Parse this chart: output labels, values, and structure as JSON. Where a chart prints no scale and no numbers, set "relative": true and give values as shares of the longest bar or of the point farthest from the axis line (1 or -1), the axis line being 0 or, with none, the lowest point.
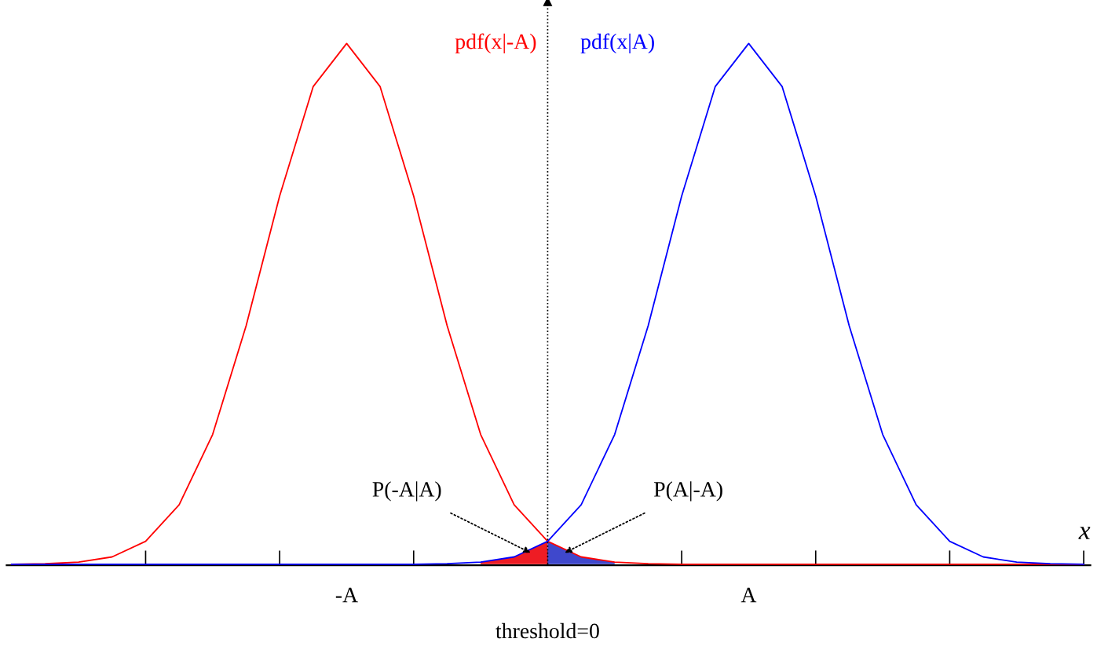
{
  "chart_data": {
    "type": "line",
    "relative": true,
    "xlabel": "x",
    "categories": [
      null,
      null,
      null,
      null,
      null,
      null,
      null,
      null,
      null,
      null,
      "-A",
      null,
      null,
      null,
      null,
      null,
      null,
      null,
      null,
      null,
      null,
      null,
      "A",
      null,
      null,
      null,
      null,
      null,
      null,
      null,
      null,
      null,
      null
    ],
    "series": [
      {
        "name": "pdf(x|-A)",
        "color": "#ff0000",
        "values": [
          0,
          0.001,
          0.004,
          0.014,
          0.044,
          0.114,
          0.249,
          0.458,
          0.707,
          0.917,
          1,
          0.917,
          0.707,
          0.458,
          0.249,
          0.114,
          0.044,
          0.014,
          0.004,
          0.001,
          0,
          0,
          0,
          0,
          0,
          0,
          0,
          0,
          0,
          0,
          0,
          0,
          0
        ]
      },
      {
        "name": "pdf(x|A)",
        "color": "#0000ff",
        "values": [
          0,
          0,
          0,
          0,
          0,
          0,
          0,
          0,
          0,
          0,
          0,
          0,
          0,
          0.001,
          0.004,
          0.014,
          0.044,
          0.114,
          0.249,
          0.458,
          0.707,
          0.917,
          1,
          0.917,
          0.707,
          0.458,
          0.249,
          0.114,
          0.044,
          0.014,
          0.004,
          0.001,
          0
        ]
      },
      {
        "type": "area",
        "color": "#ee1c24",
        "values": [
          null,
          null,
          null,
          null,
          null,
          null,
          null,
          null,
          null,
          null,
          null,
          null,
          null,
          null,
          0.004,
          0.014,
          0.044,
          null,
          null,
          null,
          null,
          null,
          null,
          null,
          null,
          null,
          null,
          null,
          null,
          null,
          null,
          null,
          null
        ]
      },
      {
        "type": "area",
        "color": "#3f48cc",
        "values": [
          null,
          null,
          null,
          null,
          null,
          null,
          null,
          null,
          null,
          null,
          null,
          null,
          null,
          null,
          null,
          null,
          0.044,
          0.014,
          0.004,
          null,
          null,
          null,
          null,
          null,
          null,
          null,
          null,
          null,
          null,
          null,
          null,
          null,
          null
        ]
      }
    ],
    "annotations": [
      "P(-A|A)",
      "P(A|-A)",
      "threshold=0"
    ]
  }
}
